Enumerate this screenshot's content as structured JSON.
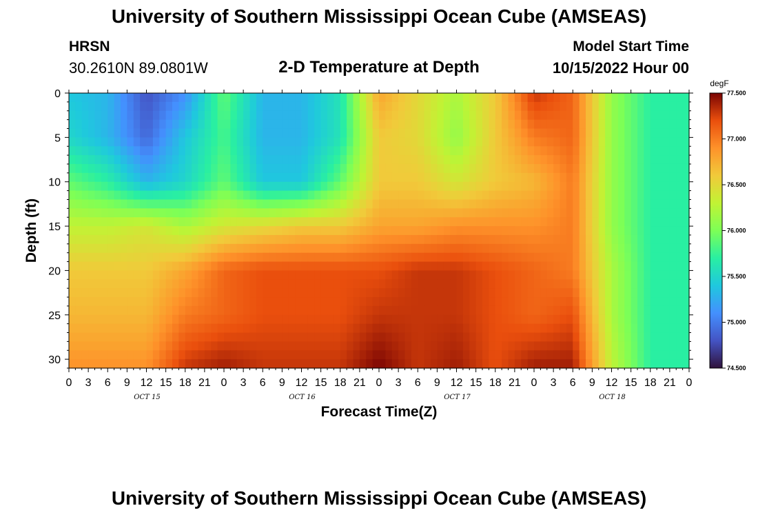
{
  "page": {
    "title_top": "University of Southern Mississippi Ocean Cube (AMSEAS)",
    "title_bottom": "University of Southern Mississippi Ocean Cube (AMSEAS)",
    "station": "HRSN",
    "coordinates": "30.2610N  89.0801W",
    "plot_title": "2-D Temperature at Depth",
    "model_start_label": "Model Start Time",
    "model_start_value": "10/15/2022 Hour 00"
  },
  "chart_data": {
    "type": "heatmap",
    "title": "2-D Temperature at Depth",
    "xlabel": "Forecast Time(Z)",
    "ylabel": "Depth (ft)",
    "x_range_hours": [
      0,
      96
    ],
    "y_range_ft": [
      0,
      31
    ],
    "x_tick_labels": [
      "0",
      "3",
      "6",
      "9",
      "12",
      "15",
      "18",
      "21",
      "0",
      "3",
      "6",
      "9",
      "12",
      "15",
      "18",
      "21",
      "0",
      "3",
      "6",
      "9",
      "12",
      "15",
      "18",
      "21",
      "0",
      "3",
      "6",
      "9",
      "12",
      "15",
      "18",
      "21",
      "0"
    ],
    "day_labels": [
      {
        "label": "OCT 15",
        "hour": 12
      },
      {
        "label": "OCT 16",
        "hour": 36
      },
      {
        "label": "OCT 17",
        "hour": 60
      },
      {
        "label": "OCT 18",
        "hour": 84
      }
    ],
    "y_ticks": [
      0,
      5,
      10,
      15,
      20,
      25,
      30
    ],
    "colorbar": {
      "unit": "degF",
      "min": 74.5,
      "max": 77.5,
      "tick_labels": [
        "77.500",
        "77.000",
        "76.500",
        "76.000",
        "75.500",
        "75.000",
        "74.500"
      ]
    },
    "temperature_samples_degF": {
      "hours": [
        0,
        6,
        12,
        18,
        24,
        30,
        36,
        42,
        48,
        54,
        60,
        66,
        72,
        78,
        84,
        90,
        96
      ],
      "depths_ft": [
        0,
        5,
        10,
        15,
        20,
        25,
        31
      ],
      "values": [
        [
          75.4,
          75.3,
          74.8,
          75.1,
          75.9,
          75.3,
          75.3,
          75.6,
          76.8,
          76.5,
          76.2,
          76.6,
          77.3,
          77.1,
          76.1,
          75.7,
          75.7
        ],
        [
          75.5,
          75.3,
          74.9,
          75.4,
          75.8,
          75.3,
          75.3,
          75.6,
          76.6,
          76.5,
          76.1,
          76.6,
          77.0,
          77.1,
          76.1,
          75.7,
          75.7
        ],
        [
          75.9,
          75.7,
          75.3,
          75.5,
          75.9,
          75.4,
          75.4,
          75.9,
          76.6,
          76.6,
          76.4,
          76.6,
          76.7,
          77.0,
          76.1,
          75.7,
          75.7
        ],
        [
          76.3,
          76.3,
          76.4,
          76.2,
          76.4,
          76.5,
          76.6,
          76.6,
          76.8,
          76.8,
          76.9,
          76.9,
          76.9,
          77.0,
          76.1,
          75.7,
          75.7
        ],
        [
          76.6,
          76.6,
          76.6,
          76.8,
          77.1,
          77.2,
          77.2,
          77.2,
          77.2,
          77.3,
          77.3,
          77.2,
          77.1,
          77.0,
          76.2,
          75.7,
          75.7
        ],
        [
          76.7,
          76.7,
          76.7,
          77.0,
          77.1,
          77.2,
          77.2,
          77.2,
          77.3,
          77.3,
          77.3,
          77.2,
          77.1,
          77.2,
          76.2,
          75.7,
          75.7
        ],
        [
          76.9,
          76.9,
          76.9,
          77.3,
          77.4,
          77.3,
          77.3,
          77.3,
          77.5,
          77.3,
          77.4,
          77.2,
          77.4,
          77.4,
          76.3,
          75.7,
          75.7
        ]
      ]
    }
  }
}
